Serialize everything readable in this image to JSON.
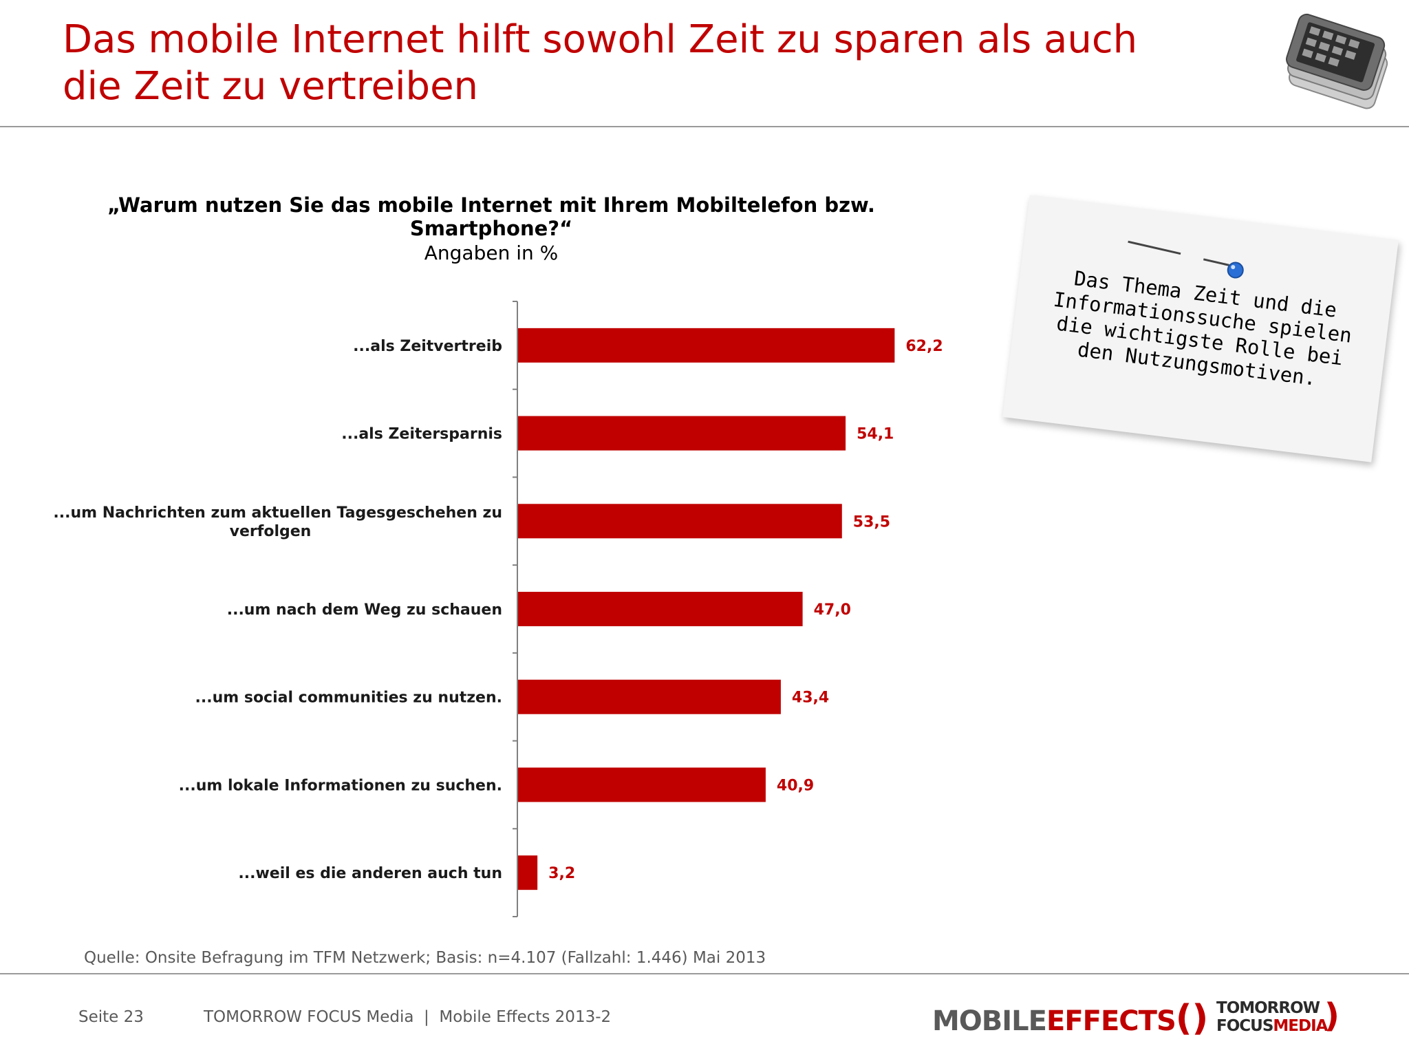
{
  "header": {
    "title_line1": "Das mobile Internet hilft sowohl Zeit zu sparen als auch",
    "title_line2": "die Zeit zu vertreiben"
  },
  "chart_data": {
    "type": "bar",
    "orientation": "horizontal",
    "title": "„Warum nutzen Sie das mobile Internet mit Ihrem Mobiltelefon bzw. Smartphone?“",
    "subtitle": "Angaben in %",
    "categories": [
      [
        "...als Zeitvertreib"
      ],
      [
        "...als Zeitersparnis"
      ],
      [
        "...um Nachrichten zum aktuellen Tagesgeschehen zu",
        "verfolgen"
      ],
      [
        "...um nach dem Weg zu schauen"
      ],
      [
        "...um social communities zu nutzen."
      ],
      [
        "...um lokale Informationen zu suchen."
      ],
      [
        "...weil es die anderen auch tun"
      ]
    ],
    "values": [
      62.2,
      54.1,
      53.5,
      47.0,
      43.4,
      40.9,
      3.2
    ],
    "value_labels": [
      "62,2",
      "54,1",
      "53,5",
      "47,0",
      "43,4",
      "40,9",
      "3,2"
    ],
    "xlim": [
      0,
      100
    ],
    "grid": false,
    "legend": "none",
    "bar_color": "#c00000"
  },
  "note": {
    "text": "Das Thema Zeit und die Informationssuche spielen die wichtigste Rolle bei den Nutzungsmotiven."
  },
  "source": "Quelle: Onsite Befragung im TFM Netzwerk; Basis: n=4.107 (Fallzahl: 1.446) Mai 2013",
  "footer": {
    "page": "Seite 23",
    "text": "TOMORROW FOCUS Media  |  Mobile Effects 2013-2",
    "logo_mobile_effects": {
      "mobile": "MOBILE",
      "effects": "EFFECTS",
      "paren": "()"
    },
    "logo_tfm": {
      "line1": "TOMORROW",
      "line2a": "FOCUS",
      "line2b": "MEDIA",
      "paren": ")"
    }
  },
  "colors": {
    "accent": "#c00000",
    "rule": "#9a9a9a",
    "footer_text": "#595959"
  }
}
